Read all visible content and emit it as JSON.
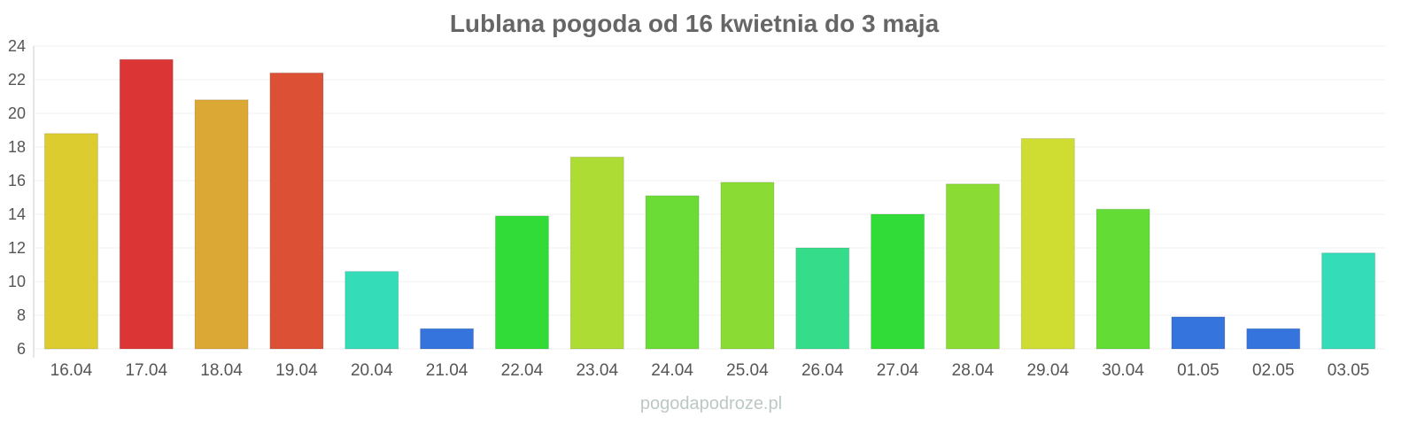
{
  "chart_data": {
    "type": "bar",
    "title": "Lublana pogoda od 16 kwietnia do 3 maja",
    "xlabel": "",
    "ylabel": "",
    "ylim": [
      6,
      24
    ],
    "yticks": [
      6,
      8,
      10,
      12,
      14,
      16,
      18,
      20,
      22,
      24
    ],
    "grid": true,
    "categories": [
      "16.04",
      "17.04",
      "18.04",
      "19.04",
      "20.04",
      "21.04",
      "22.04",
      "23.04",
      "24.04",
      "25.04",
      "26.04",
      "27.04",
      "28.04",
      "29.04",
      "30.04",
      "01.05",
      "02.05",
      "03.05"
    ],
    "values": [
      18.8,
      23.2,
      20.8,
      22.4,
      10.6,
      7.2,
      13.9,
      17.4,
      15.1,
      15.9,
      12.0,
      14.0,
      15.8,
      18.5,
      14.3,
      7.9,
      7.2,
      11.7
    ],
    "colors": [
      "#dccc30",
      "#dc3535",
      "#dca835",
      "#dc5035",
      "#35dcb8",
      "#3574dc",
      "#32dc38",
      "#addc35",
      "#6adc35",
      "#8adc35",
      "#35dc8a",
      "#32dc38",
      "#8adc35",
      "#cfdc32",
      "#63dc35",
      "#3574dc",
      "#3574dc",
      "#35dcb8"
    ]
  },
  "watermark": "pogodapodroze.pl"
}
